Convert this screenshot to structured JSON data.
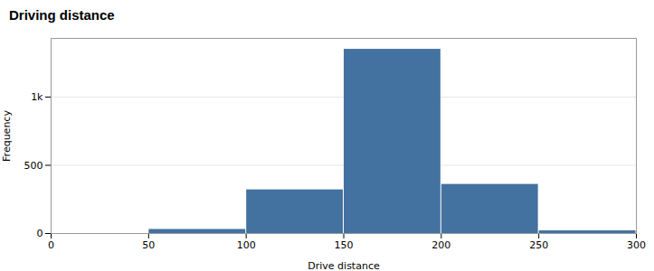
{
  "chart_data": {
    "type": "histogram",
    "title": "Driving distance",
    "xlabel": "Drive distance",
    "ylabel": "Frequency",
    "bins": [
      0,
      50,
      100,
      150,
      200,
      250,
      300
    ],
    "values": [
      0,
      30,
      320,
      1350,
      360,
      20
    ],
    "color": "#4472a0",
    "xlim": [
      0,
      300
    ],
    "ylim": [
      0,
      1430
    ],
    "xticks": [
      0,
      50,
      100,
      150,
      200,
      250,
      300
    ],
    "yticks": [
      0,
      500,
      {
        "value": 1000,
        "label": "1k"
      }
    ],
    "grid": true
  }
}
